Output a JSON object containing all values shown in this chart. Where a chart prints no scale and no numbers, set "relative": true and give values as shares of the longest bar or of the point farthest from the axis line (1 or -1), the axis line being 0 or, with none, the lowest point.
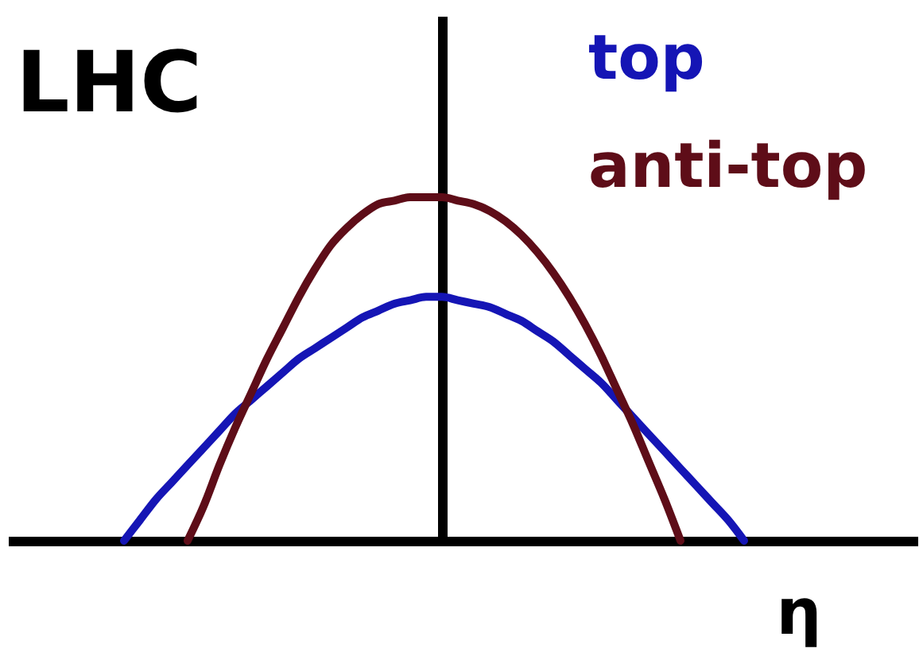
{
  "chart_data": {
    "type": "line",
    "title": "LHC",
    "xlabel": "η",
    "relative": true,
    "legend": "top right",
    "categories": [
      null,
      null,
      null,
      null,
      null,
      null,
      null,
      null,
      null,
      null,
      null,
      null,
      null,
      null,
      null,
      null,
      null,
      null,
      null,
      null,
      null,
      null,
      null,
      null,
      null,
      null,
      null,
      null,
      null,
      null,
      null,
      null,
      null,
      null,
      null,
      null,
      null,
      null,
      null,
      null
    ],
    "series": [
      {
        "name": "top",
        "color": "#1515b5",
        "values": [
          0,
          0.06,
          0.12,
          0.17,
          0.22,
          0.27,
          0.32,
          0.37,
          0.41,
          0.45,
          0.49,
          0.53,
          0.56,
          0.59,
          0.62,
          0.65,
          0.67,
          0.69,
          0.7,
          0.71,
          0.71,
          0.7,
          0.69,
          0.68,
          0.66,
          0.64,
          0.61,
          0.58,
          0.54,
          0.5,
          0.46,
          0.41,
          0.36,
          0.31,
          0.26,
          0.21,
          0.16,
          0.11,
          0.06,
          0
        ]
      },
      {
        "name": "anti-top",
        "color": "#5e0d18",
        "values": [
          null,
          null,
          null,
          null,
          0,
          0.1,
          0.22,
          0.33,
          0.43,
          0.53,
          0.62,
          0.71,
          0.79,
          0.86,
          0.91,
          0.95,
          0.98,
          0.99,
          1,
          1,
          1,
          0.99,
          0.98,
          0.96,
          0.93,
          0.89,
          0.84,
          0.78,
          0.71,
          0.63,
          0.54,
          0.44,
          0.34,
          0.23,
          0.12,
          0,
          null,
          null,
          null,
          null
        ]
      }
    ]
  }
}
